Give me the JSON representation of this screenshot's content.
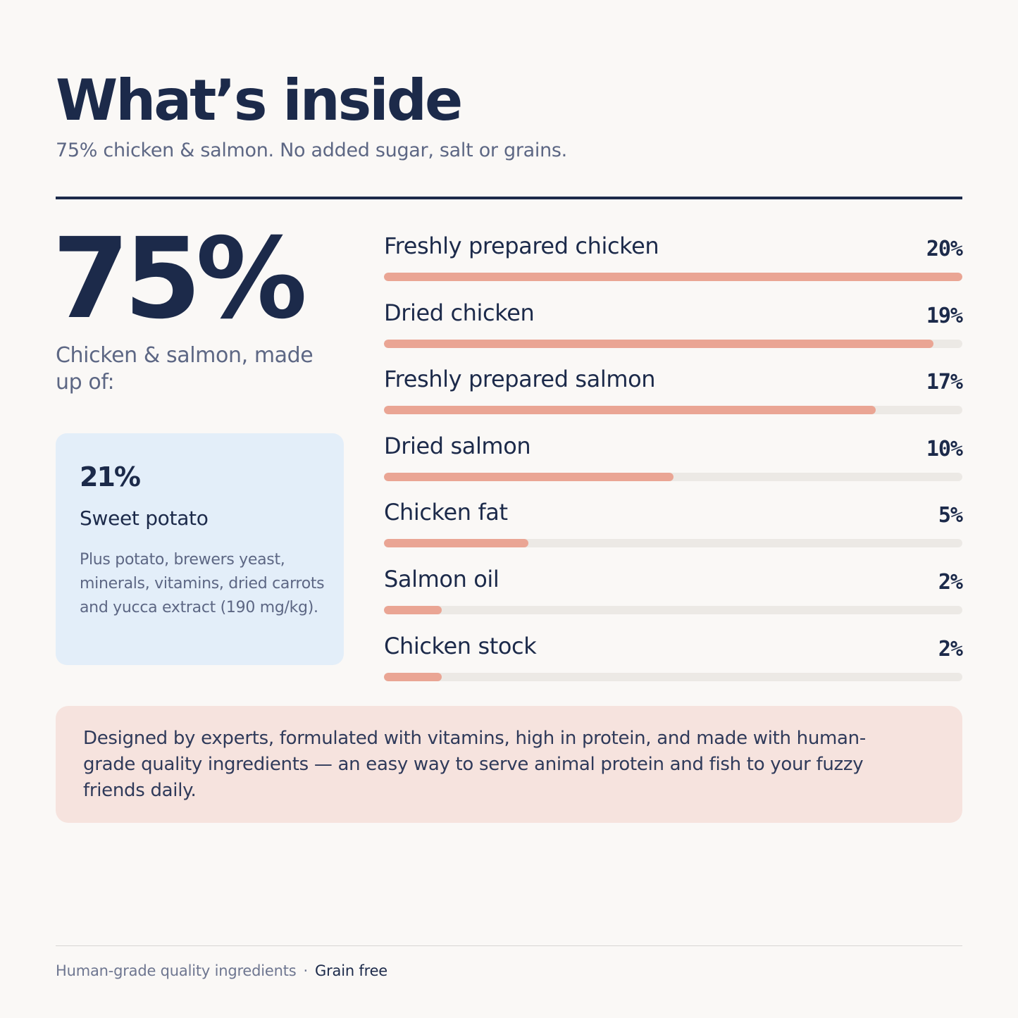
{
  "header": {
    "title": "What’s inside",
    "subtitle": "75% chicken & salmon. No added sugar, salt or grains."
  },
  "summary": {
    "big_percent": "75%",
    "caption": "Chicken & salmon, made up of:"
  },
  "card": {
    "percent": "21%",
    "name": "Sweet potato",
    "note": "Plus potato, brewers yeast, minerals, vitamins, dried carrots and yucca extract (190 mg/kg)."
  },
  "chart_data": {
    "type": "bar",
    "orientation": "horizontal",
    "categories": [
      "Freshly prepared chicken",
      "Dried chicken",
      "Freshly prepared salmon",
      "Dried salmon",
      "Chicken fat",
      "Salmon oil",
      "Chicken stock"
    ],
    "values": [
      20,
      19,
      17,
      10,
      5,
      2,
      2
    ],
    "value_labels": [
      "20%",
      "19%",
      "17%",
      "10%",
      "5%",
      "2%",
      "2%"
    ],
    "xlim": [
      0,
      20
    ],
    "title": "",
    "xlabel": "",
    "ylabel": "",
    "grid": false,
    "bar_color": "#eaa594",
    "track_color": "#ece9e5"
  },
  "note": {
    "text": "Designed by experts, formulated with vitamins, high in protein, and made with human-grade quality ingredients — an easy way to serve animal protein and fish to your fuzzy friends daily."
  },
  "footer": {
    "left": "Human-grade quality ingredients",
    "separator": "·",
    "right": "Grain free"
  }
}
